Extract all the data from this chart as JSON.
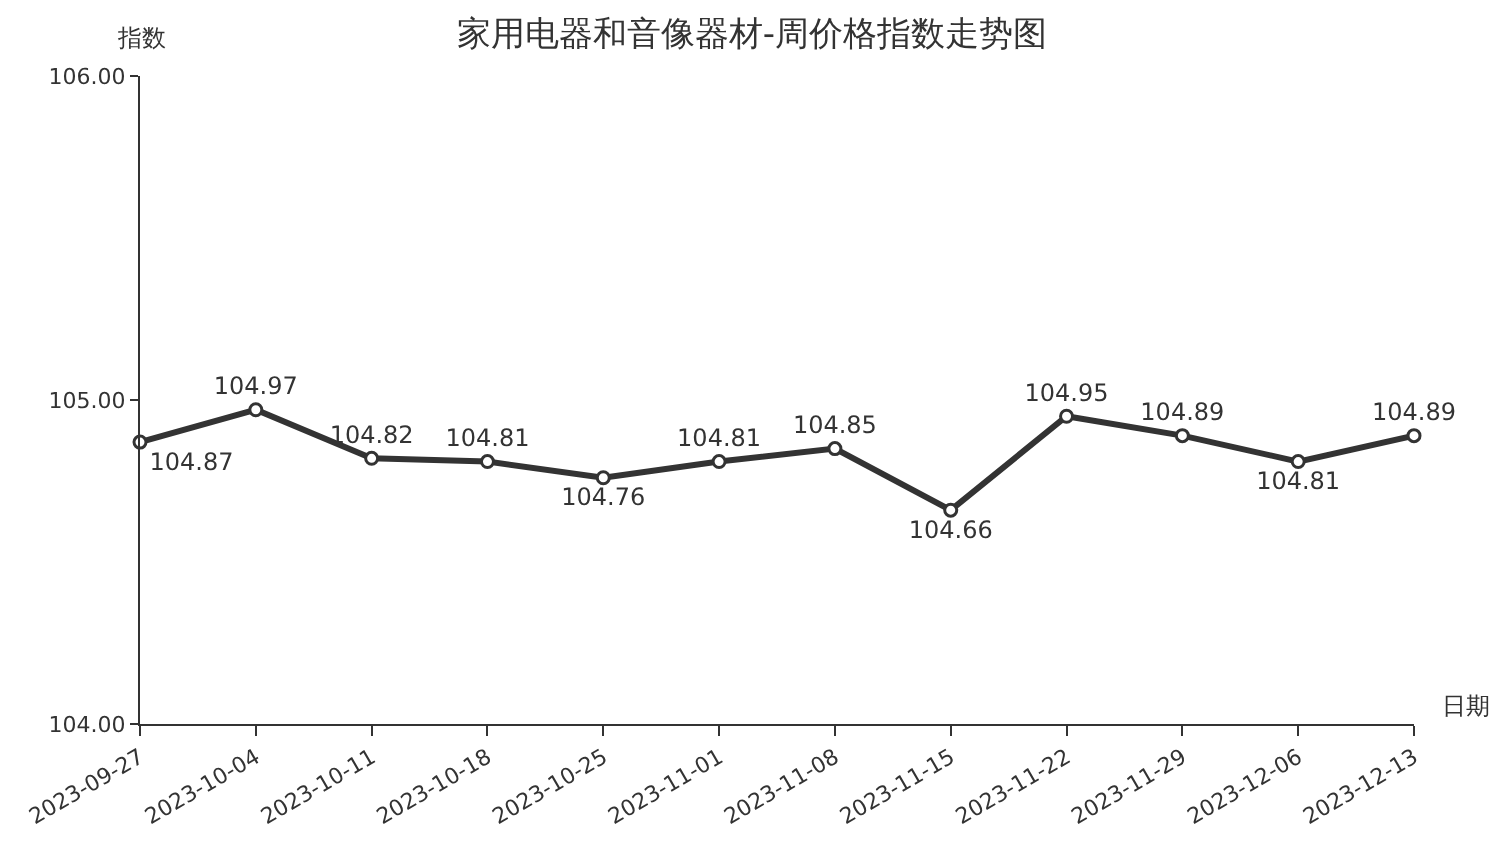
{
  "chart_data": {
    "type": "line",
    "title": "家用电器和音像器材-周价格指数走势图",
    "xlabel": "日期",
    "ylabel": "指数",
    "categories": [
      "2023-09-27",
      "2023-10-04",
      "2023-10-11",
      "2023-10-18",
      "2023-10-25",
      "2023-11-01",
      "2023-11-08",
      "2023-11-15",
      "2023-11-22",
      "2023-11-29",
      "2023-12-06",
      "2023-12-13"
    ],
    "series": [
      {
        "color": "#333333",
        "values": [
          104.87,
          104.97,
          104.82,
          104.81,
          104.76,
          104.81,
          104.85,
          104.66,
          104.95,
          104.89,
          104.81,
          104.89
        ]
      }
    ],
    "ylim": [
      104,
      106
    ],
    "yticks": [
      {
        "value": 104,
        "label": "104.00"
      },
      {
        "value": 105,
        "label": "105.00"
      },
      {
        "value": 106,
        "label": "106.00"
      }
    ],
    "grid": false,
    "marker": "circle",
    "line_style": "solid",
    "data_labels": true
  }
}
